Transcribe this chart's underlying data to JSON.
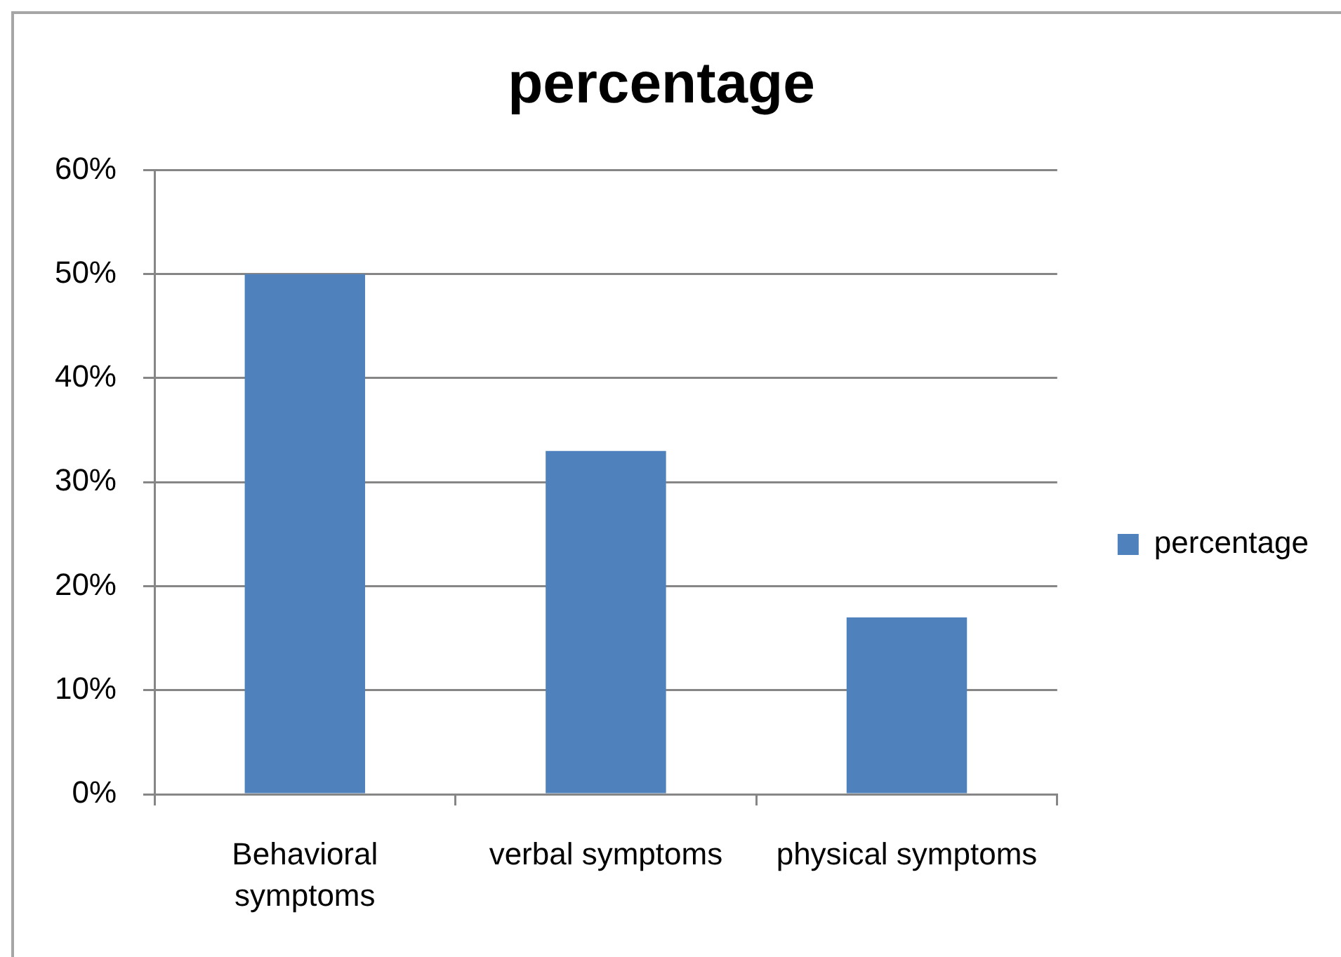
{
  "chart_data": {
    "type": "bar",
    "title": "percentage",
    "categories": [
      "Behavioral symptoms",
      "verbal symptoms",
      "physical symptoms"
    ],
    "series": [
      {
        "name": "percentage",
        "color": "#4f81bd",
        "values": [
          50,
          33,
          17
        ]
      }
    ],
    "ylim": [
      0,
      60
    ],
    "yticks": [
      {
        "value": 0,
        "label": "0%"
      },
      {
        "value": 10,
        "label": "10%"
      },
      {
        "value": 20,
        "label": "20%"
      },
      {
        "value": 30,
        "label": "30%"
      },
      {
        "value": 40,
        "label": "40%"
      },
      {
        "value": 50,
        "label": "50%"
      },
      {
        "value": 60,
        "label": "60%"
      }
    ],
    "grid": "y",
    "legend": "right"
  }
}
